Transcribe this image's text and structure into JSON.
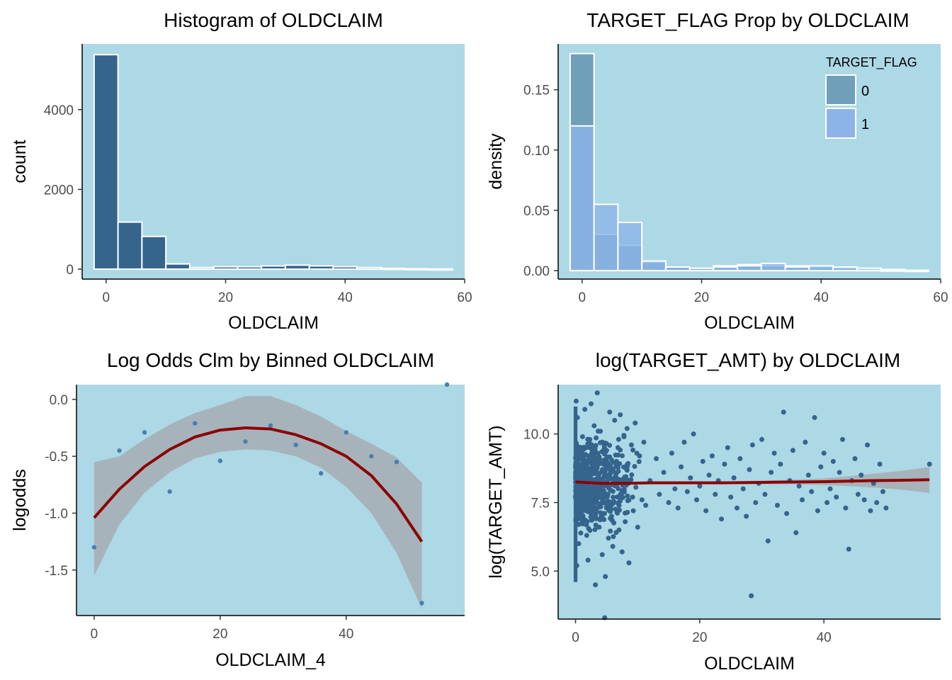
{
  "chart_data": [
    {
      "type": "bar",
      "title": "Histogram of OLDCLAIM",
      "xlabel": "OLDCLAIM",
      "ylabel": "count",
      "xlim": [
        -4,
        60
      ],
      "ylim": [
        -250,
        5650
      ],
      "xticks": [
        0,
        20,
        40,
        60
      ],
      "yticks": [
        0,
        2000,
        4000
      ],
      "bin_width": 4,
      "bins": [
        {
          "x": 0,
          "count": 5380
        },
        {
          "x": 4,
          "count": 1180
        },
        {
          "x": 8,
          "count": 820
        },
        {
          "x": 12,
          "count": 130
        },
        {
          "x": 16,
          "count": 40
        },
        {
          "x": 20,
          "count": 60
        },
        {
          "x": 24,
          "count": 60
        },
        {
          "x": 28,
          "count": 80
        },
        {
          "x": 32,
          "count": 100
        },
        {
          "x": 36,
          "count": 80
        },
        {
          "x": 40,
          "count": 60
        },
        {
          "x": 44,
          "count": 40
        },
        {
          "x": 48,
          "count": 20
        },
        {
          "x": 52,
          "count": 10
        },
        {
          "x": 56,
          "count": 5
        }
      ],
      "colors": {
        "bar": "#35648c",
        "panel": "#add8e6",
        "outline": "#ffffff"
      }
    },
    {
      "type": "bar",
      "title": "TARGET_FLAG Prop by OLDCLAIM",
      "xlabel": "OLDCLAIM",
      "ylabel": "density",
      "xlim": [
        -4,
        60
      ],
      "ylim": [
        -0.007,
        0.188
      ],
      "xticks": [
        0,
        20,
        40,
        60
      ],
      "yticks": [
        0.0,
        0.05,
        0.1,
        0.15
      ],
      "ytick_labels": [
        "0.00",
        "0.05",
        "0.10",
        "0.15"
      ],
      "bin_width": 4,
      "legend": {
        "title": "TARGET_FLAG",
        "position": "top-right"
      },
      "series": [
        {
          "name": "0",
          "color": "#6f9fb9",
          "values": [
            0.18,
            0.03,
            0.021,
            0.007,
            0.003,
            0.002,
            0.004,
            0.005,
            0.004,
            0.004,
            0.003,
            0.002,
            0.001,
            0.0005,
            0.0002
          ]
        },
        {
          "name": "1",
          "color": "#8cb4e8",
          "values": [
            0.12,
            0.055,
            0.04,
            0.008,
            0.003,
            0.002,
            0.003,
            0.004,
            0.006,
            0.003,
            0.004,
            0.003,
            0.002,
            0.001,
            0.0003
          ]
        }
      ],
      "colors": {
        "panel": "#add8e6",
        "overlap": "#6d97d0"
      }
    },
    {
      "type": "scatter",
      "title": "Log Odds Clm by Binned OLDCLAIM",
      "xlabel": "OLDCLAIM_4",
      "ylabel": "logodds",
      "xlim": [
        -2.8,
        58.8
      ],
      "ylim": [
        -1.9,
        0.13
      ],
      "xticks": [
        0,
        20,
        40
      ],
      "yticks": [
        0.0,
        -0.5,
        -1.0,
        -1.5
      ],
      "ytick_labels": [
        "0.0",
        "-0.5",
        "-1.0",
        "-1.5"
      ],
      "points": [
        {
          "x": 0,
          "y": -1.3
        },
        {
          "x": 4,
          "y": -0.45
        },
        {
          "x": 8,
          "y": -0.29
        },
        {
          "x": 12,
          "y": -0.81
        },
        {
          "x": 16,
          "y": -0.21
        },
        {
          "x": 20,
          "y": -0.54
        },
        {
          "x": 24,
          "y": -0.37
        },
        {
          "x": 28,
          "y": -0.23
        },
        {
          "x": 32,
          "y": -0.4
        },
        {
          "x": 36,
          "y": -0.65
        },
        {
          "x": 40,
          "y": -0.29
        },
        {
          "x": 44,
          "y": -0.5
        },
        {
          "x": 48,
          "y": -0.55
        },
        {
          "x": 52,
          "y": -1.79
        },
        {
          "x": 56,
          "y": 0.13
        }
      ],
      "smooth": {
        "x": [
          0,
          4,
          8,
          12,
          16,
          20,
          24,
          28,
          32,
          36,
          40,
          44,
          48,
          52
        ],
        "y": [
          -1.04,
          -0.79,
          -0.59,
          -0.44,
          -0.33,
          -0.27,
          -0.25,
          -0.26,
          -0.31,
          -0.39,
          -0.5,
          -0.67,
          -0.92,
          -1.25
        ],
        "lower": [
          -1.55,
          -1.1,
          -0.82,
          -0.64,
          -0.52,
          -0.46,
          -0.44,
          -0.45,
          -0.5,
          -0.6,
          -0.77,
          -1.0,
          -1.35,
          -1.84
        ],
        "upper": [
          -0.55,
          -0.5,
          -0.35,
          -0.22,
          -0.12,
          -0.05,
          0.03,
          0.03,
          -0.05,
          -0.15,
          -0.28,
          -0.39,
          -0.51,
          -0.73
        ]
      },
      "colors": {
        "point": "#4a7eb0",
        "line": "#8b0000",
        "band": "#a6adb3",
        "panel": "#add8e6"
      }
    },
    {
      "type": "scatter",
      "title": "log(TARGET_AMT) by OLDCLAIM",
      "xlabel": "OLDCLAIM",
      "ylabel": "log(TARGET_AMT)",
      "xlim": [
        -2.8,
        58.8
      ],
      "ylim": [
        3.25,
        11.8
      ],
      "xticks": [
        0,
        20,
        40
      ],
      "yticks": [
        5.0,
        7.5,
        10.0
      ],
      "ytick_labels": [
        "5.0",
        "7.5",
        "10.0"
      ],
      "points": [
        {
          "x": 0.1,
          "y": 11.2
        },
        {
          "x": 0.2,
          "y": 5.2
        },
        {
          "x": 0.3,
          "y": 10.6
        },
        {
          "x": 0.5,
          "y": 6.0
        },
        {
          "x": 0.8,
          "y": 9.5
        },
        {
          "x": 1.2,
          "y": 7.0
        },
        {
          "x": 1.5,
          "y": 10.9
        },
        {
          "x": 1.8,
          "y": 6.3
        },
        {
          "x": 2.0,
          "y": 5.4
        },
        {
          "x": 2.3,
          "y": 9.8
        },
        {
          "x": 2.5,
          "y": 11.1
        },
        {
          "x": 2.8,
          "y": 6.9
        },
        {
          "x": 3.0,
          "y": 10.3
        },
        {
          "x": 3.2,
          "y": 4.5
        },
        {
          "x": 3.5,
          "y": 11.5
        },
        {
          "x": 3.8,
          "y": 6.6
        },
        {
          "x": 4.0,
          "y": 10.1
        },
        {
          "x": 4.3,
          "y": 5.6
        },
        {
          "x": 4.7,
          "y": 3.3
        },
        {
          "x": 4.8,
          "y": 4.8
        },
        {
          "x": 5.0,
          "y": 9.4
        },
        {
          "x": 5.3,
          "y": 6.2
        },
        {
          "x": 5.5,
          "y": 10.8
        },
        {
          "x": 5.8,
          "y": 7.0
        },
        {
          "x": 6.0,
          "y": 5.9
        },
        {
          "x": 6.3,
          "y": 10.5
        },
        {
          "x": 6.6,
          "y": 9.0
        },
        {
          "x": 7.0,
          "y": 6.5
        },
        {
          "x": 7.2,
          "y": 10.7
        },
        {
          "x": 7.5,
          "y": 5.7
        },
        {
          "x": 7.8,
          "y": 9.9
        },
        {
          "x": 8.0,
          "y": 6.8
        },
        {
          "x": 8.3,
          "y": 10.2
        },
        {
          "x": 8.6,
          "y": 5.3
        },
        {
          "x": 9.0,
          "y": 9.6
        },
        {
          "x": 9.3,
          "y": 7.2
        },
        {
          "x": 9.6,
          "y": 10.4
        },
        {
          "x": 10.0,
          "y": 6.6
        },
        {
          "x": 10.3,
          "y": 9.2
        },
        {
          "x": 10.7,
          "y": 7.6
        },
        {
          "x": 11.0,
          "y": 9.7
        },
        {
          "x": 11.3,
          "y": 7.4
        },
        {
          "x": 12.0,
          "y": 8.3
        },
        {
          "x": 13.0,
          "y": 9.1
        },
        {
          "x": 13.5,
          "y": 7.8
        },
        {
          "x": 14.2,
          "y": 8.6
        },
        {
          "x": 15.0,
          "y": 7.5
        },
        {
          "x": 15.5,
          "y": 9.3
        },
        {
          "x": 16.0,
          "y": 8.0
        },
        {
          "x": 16.5,
          "y": 7.3
        },
        {
          "x": 17.0,
          "y": 8.8
        },
        {
          "x": 17.5,
          "y": 9.7
        },
        {
          "x": 18.0,
          "y": 7.9
        },
        {
          "x": 18.5,
          "y": 8.4
        },
        {
          "x": 19.0,
          "y": 10.0
        },
        {
          "x": 19.5,
          "y": 7.6
        },
        {
          "x": 20.0,
          "y": 8.1
        },
        {
          "x": 20.5,
          "y": 9.0
        },
        {
          "x": 21.0,
          "y": 7.2
        },
        {
          "x": 21.5,
          "y": 8.5
        },
        {
          "x": 22.0,
          "y": 9.2
        },
        {
          "x": 22.5,
          "y": 7.8
        },
        {
          "x": 23.0,
          "y": 8.3
        },
        {
          "x": 23.5,
          "y": 6.9
        },
        {
          "x": 24.0,
          "y": 8.9
        },
        {
          "x": 24.5,
          "y": 9.5
        },
        {
          "x": 25.0,
          "y": 7.7
        },
        {
          "x": 25.5,
          "y": 8.4
        },
        {
          "x": 26.0,
          "y": 7.3
        },
        {
          "x": 26.5,
          "y": 9.1
        },
        {
          "x": 27.0,
          "y": 8.0
        },
        {
          "x": 27.5,
          "y": 7.0
        },
        {
          "x": 28.0,
          "y": 8.7
        },
        {
          "x": 28.3,
          "y": 4.1
        },
        {
          "x": 28.5,
          "y": 9.6
        },
        {
          "x": 29.0,
          "y": 7.5
        },
        {
          "x": 29.5,
          "y": 8.2
        },
        {
          "x": 30.0,
          "y": 9.8
        },
        {
          "x": 30.5,
          "y": 7.8
        },
        {
          "x": 31.0,
          "y": 6.1
        },
        {
          "x": 31.5,
          "y": 8.6
        },
        {
          "x": 32.0,
          "y": 9.3
        },
        {
          "x": 32.5,
          "y": 7.4
        },
        {
          "x": 33.0,
          "y": 8.9
        },
        {
          "x": 33.5,
          "y": 10.8
        },
        {
          "x": 34.0,
          "y": 7.1
        },
        {
          "x": 34.5,
          "y": 8.3
        },
        {
          "x": 35.0,
          "y": 9.4
        },
        {
          "x": 35.5,
          "y": 6.4
        },
        {
          "x": 36.0,
          "y": 8.1
        },
        {
          "x": 36.5,
          "y": 7.6
        },
        {
          "x": 37.0,
          "y": 9.7
        },
        {
          "x": 37.5,
          "y": 8.5
        },
        {
          "x": 38.0,
          "y": 7.9
        },
        {
          "x": 38.5,
          "y": 10.6
        },
        {
          "x": 39.0,
          "y": 7.2
        },
        {
          "x": 39.5,
          "y": 8.8
        },
        {
          "x": 40.0,
          "y": 9.3
        },
        {
          "x": 40.5,
          "y": 7.5
        },
        {
          "x": 41.0,
          "y": 8.0
        },
        {
          "x": 41.5,
          "y": 9.0
        },
        {
          "x": 42.0,
          "y": 7.7
        },
        {
          "x": 42.5,
          "y": 8.6
        },
        {
          "x": 43.0,
          "y": 9.8
        },
        {
          "x": 43.5,
          "y": 7.3
        },
        {
          "x": 44.0,
          "y": 5.8
        },
        {
          "x": 44.5,
          "y": 8.3
        },
        {
          "x": 45.0,
          "y": 9.1
        },
        {
          "x": 45.5,
          "y": 7.8
        },
        {
          "x": 46.0,
          "y": 8.5
        },
        {
          "x": 46.5,
          "y": 7.6
        },
        {
          "x": 47.0,
          "y": 9.6
        },
        {
          "x": 47.5,
          "y": 7.2
        },
        {
          "x": 48.0,
          "y": 8.2
        },
        {
          "x": 48.5,
          "y": 7.5
        },
        {
          "x": 49.0,
          "y": 8.9
        },
        {
          "x": 49.5,
          "y": 7.9
        },
        {
          "x": 50.0,
          "y": 7.3
        },
        {
          "x": 57.0,
          "y": 8.9
        }
      ],
      "smooth": {
        "x": [
          0,
          4,
          8,
          12,
          16,
          20,
          24,
          28,
          32,
          36,
          40,
          44,
          48,
          52,
          57
        ],
        "y": [
          8.25,
          8.2,
          8.2,
          8.22,
          8.22,
          8.22,
          8.22,
          8.23,
          8.24,
          8.25,
          8.26,
          8.28,
          8.3,
          8.31,
          8.33
        ],
        "lower": [
          8.2,
          8.16,
          8.16,
          8.17,
          8.17,
          8.17,
          8.17,
          8.17,
          8.17,
          8.16,
          8.14,
          8.1,
          8.05,
          7.98,
          7.85
        ],
        "upper": [
          8.3,
          8.24,
          8.24,
          8.27,
          8.27,
          8.27,
          8.27,
          8.29,
          8.31,
          8.34,
          8.38,
          8.46,
          8.55,
          8.64,
          8.8
        ]
      },
      "colors": {
        "point": "#35648c",
        "line": "#8b0000",
        "band": "#a6adb3",
        "panel": "#add8e6"
      }
    }
  ]
}
